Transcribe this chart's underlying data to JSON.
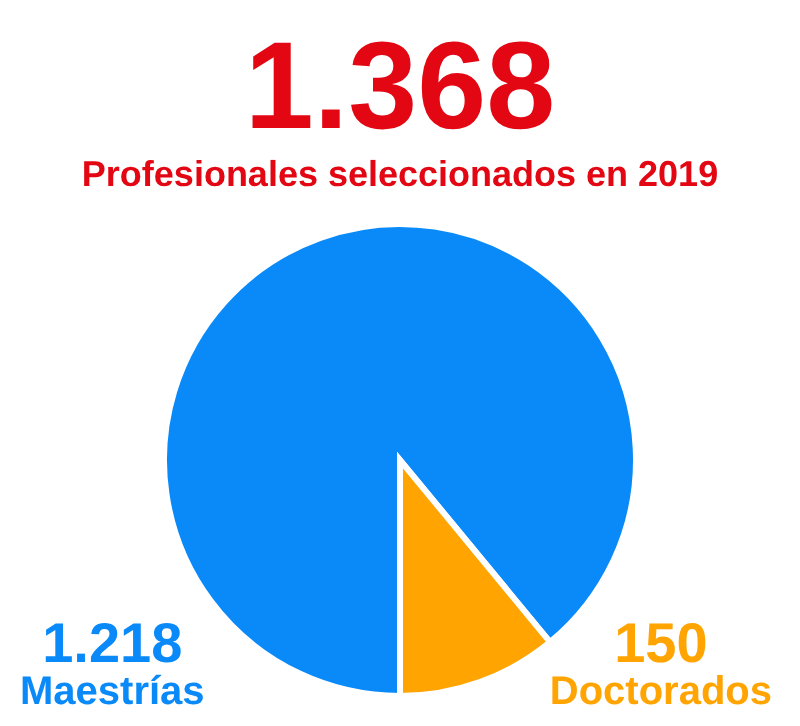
{
  "chart_data": {
    "type": "pie",
    "title": "1.368",
    "subtitle": "Profesionales seleccionados en 2019",
    "categories": [
      "Maestrías",
      "Doctorados"
    ],
    "values": [
      1218,
      150
    ],
    "value_labels": [
      "1.218",
      "150"
    ],
    "colors": [
      "#0a8af8",
      "#ffa400"
    ],
    "legend": false
  }
}
